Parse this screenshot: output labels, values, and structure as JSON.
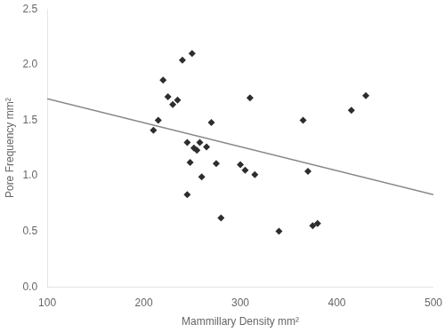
{
  "chart_data": {
    "type": "scatter",
    "xlabel": "Mammillary Density mm²",
    "ylabel": "Pore Frequency mm²",
    "xlim": [
      100,
      500
    ],
    "ylim": [
      0.0,
      2.5
    ],
    "xticks": [
      100,
      200,
      300,
      400,
      500
    ],
    "yticks": [
      {
        "value": 0.0,
        "label": "0.0"
      },
      {
        "value": 0.5,
        "label": "0.5"
      },
      {
        "value": 1.0,
        "label": "1.0"
      },
      {
        "value": 1.5,
        "label": "1.5"
      },
      {
        "value": 2.0,
        "label": "2.0"
      },
      {
        "value": 2.5,
        "label": "2.5"
      }
    ],
    "grid": false,
    "series": [
      {
        "type": "scatter",
        "marker": "diamond",
        "color": "#2d2d2d",
        "x": [
          210,
          215,
          220,
          225,
          230,
          235,
          240,
          245,
          245,
          248,
          250,
          252,
          255,
          258,
          260,
          265,
          270,
          275,
          280,
          300,
          305,
          310,
          315,
          340,
          365,
          370,
          375,
          380,
          415,
          430
        ],
        "values": [
          1.41,
          1.5,
          1.86,
          1.71,
          1.64,
          1.68,
          2.04,
          1.3,
          0.83,
          1.12,
          2.1,
          1.25,
          1.23,
          1.3,
          0.99,
          1.26,
          1.48,
          1.11,
          0.62,
          1.1,
          1.05,
          1.7,
          1.01,
          0.5,
          1.5,
          1.04,
          0.55,
          0.57,
          1.59,
          1.72
        ]
      },
      {
        "type": "line",
        "line_style": "solid",
        "color": "#888888",
        "x": [
          100,
          500
        ],
        "values": [
          1.6939,
          0.8301
        ]
      }
    ]
  }
}
